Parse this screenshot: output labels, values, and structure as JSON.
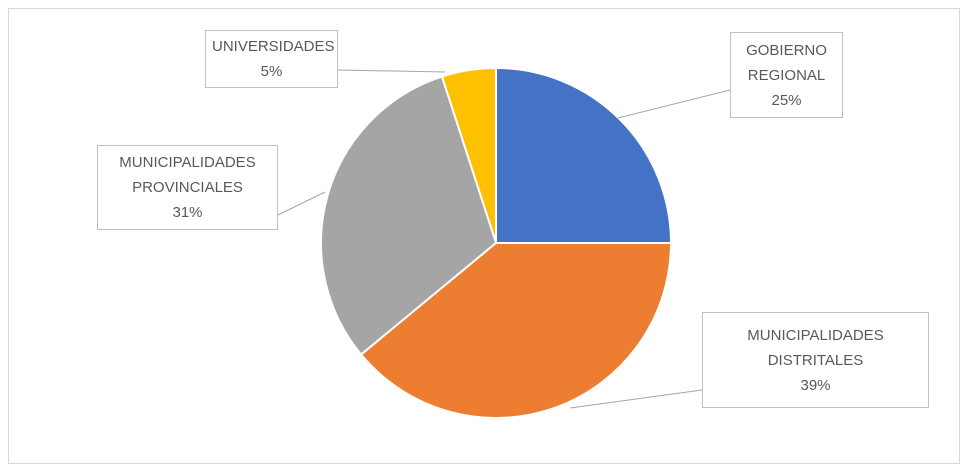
{
  "chart_data": {
    "type": "pie",
    "categories": [
      "GOBIERNO REGIONAL",
      "MUNICIPALIDADES DISTRITALES",
      "MUNICIPALIDADES PROVINCIALES",
      "UNIVERSIDADES"
    ],
    "values": [
      25,
      39,
      31,
      5
    ],
    "value_labels": [
      "25%",
      "39%",
      "31%",
      "5%"
    ],
    "colors": [
      "#4472c4",
      "#ed7d31",
      "#a5a5a5",
      "#ffc000"
    ]
  }
}
